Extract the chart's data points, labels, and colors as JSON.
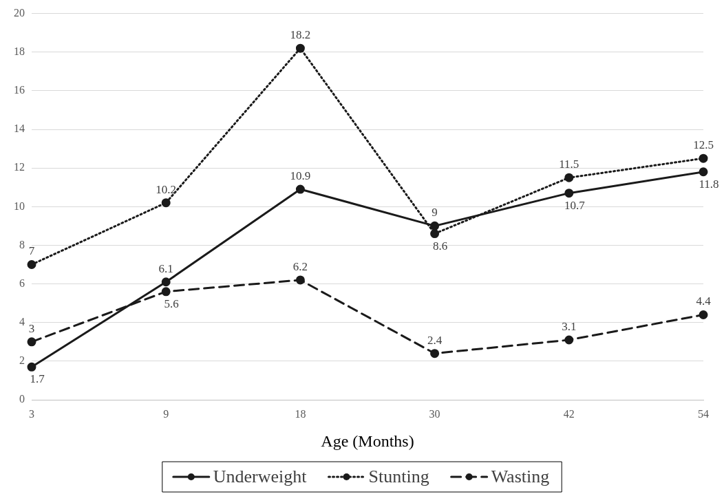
{
  "chart_data": {
    "type": "line",
    "xlabel": "Age (Months)",
    "categories": [
      "3",
      "9",
      "18",
      "30",
      "42",
      "54"
    ],
    "series": [
      {
        "name": "Underweight",
        "color": "#1a1a1a",
        "line_style": "solid",
        "values": [
          1.7,
          6.1,
          10.9,
          9,
          10.7,
          11.8
        ]
      },
      {
        "name": "Stunting",
        "color": "#1a1a1a",
        "line_style": "dotted",
        "values": [
          7,
          10.2,
          18.2,
          8.6,
          11.5,
          12.5
        ]
      },
      {
        "name": "Wasting",
        "color": "#1a1a1a",
        "line_style": "dashed",
        "values": [
          3,
          5.6,
          6.2,
          2.4,
          3.1,
          4.4
        ]
      }
    ],
    "ylim": [
      0,
      20
    ],
    "yticks": [
      0,
      2,
      4,
      6,
      8,
      10,
      12,
      14,
      16,
      18,
      20
    ],
    "grid": "y",
    "legend": "bottom",
    "marker": "circle",
    "data_labels": true
  }
}
